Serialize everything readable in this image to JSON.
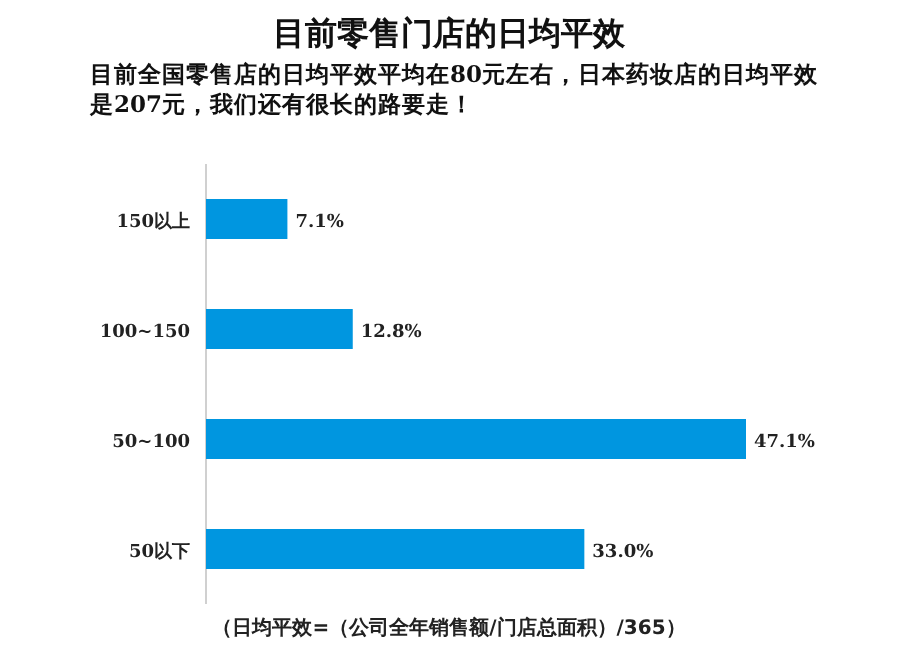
{
  "chart_data": {
    "type": "bar",
    "orientation": "horizontal",
    "title": "目前零售门店的日均平效",
    "subtitle": "目前全国零售店的日均平效平均在80元左右，日本药妆店的日均平效是207元，我们还有很长的路要走！",
    "categories": [
      "150以上",
      "100~150",
      "50~100",
      "50以下"
    ],
    "values": [
      7.1,
      12.8,
      47.1,
      33.0
    ],
    "value_labels": [
      "7.1%",
      "12.8%",
      "47.1%",
      "33.0%"
    ],
    "color": "#0096e0",
    "annotations": [
      "（日均平效=（公司全年销售额/门店总面积）/365）"
    ]
  }
}
